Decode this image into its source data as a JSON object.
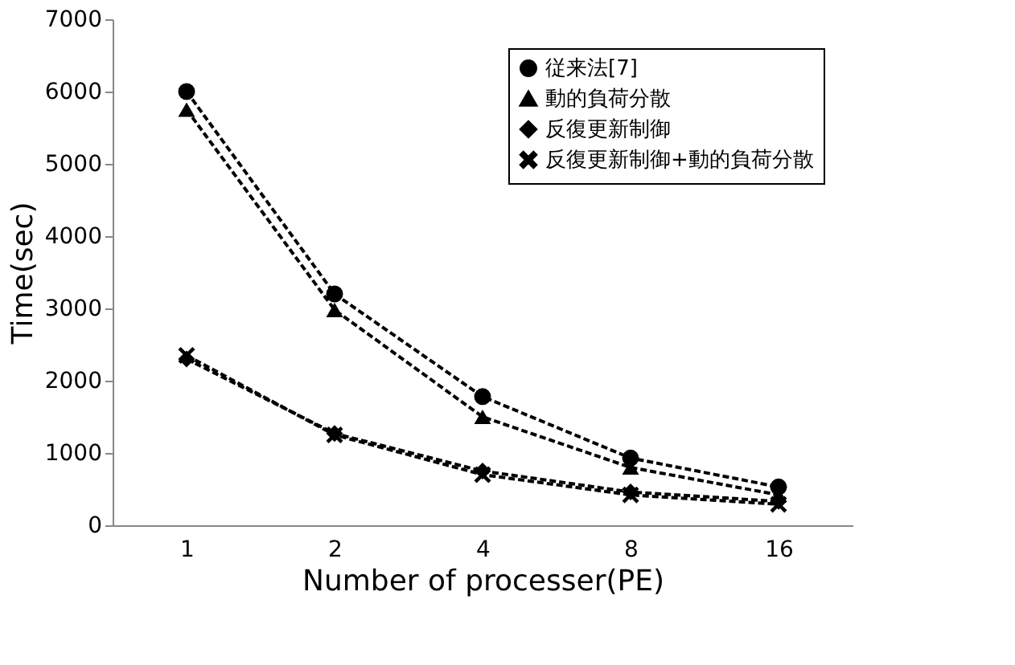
{
  "chart_data": {
    "type": "line",
    "xlabel": "Number of processer(PE)",
    "ylabel": "Time(sec)",
    "categories": [
      "1",
      "2",
      "4",
      "8",
      "16"
    ],
    "series": [
      {
        "name": "従来法[7]",
        "color": "#000000",
        "marker": "circle",
        "values": [
          6000,
          3200,
          1780,
          930,
          530
        ]
      },
      {
        "name": "動的負荷分散",
        "color": "#000000",
        "marker": "triangle",
        "values": [
          5750,
          2980,
          1500,
          800,
          420
        ]
      },
      {
        "name": "反復更新制御",
        "color": "#000000",
        "marker": "diamond",
        "values": [
          2300,
          1270,
          750,
          460,
          330
        ]
      },
      {
        "name": "反復更新制御+動的負荷分散",
        "color": "#000000",
        "marker": "cross",
        "values": [
          2350,
          1250,
          700,
          420,
          290
        ]
      }
    ],
    "ylim": [
      0,
      7000
    ],
    "yticks": [
      0,
      1000,
      2000,
      3000,
      4000,
      5000,
      6000,
      7000
    ],
    "grid": false,
    "legend": "top right",
    "line_style": "dashed"
  }
}
